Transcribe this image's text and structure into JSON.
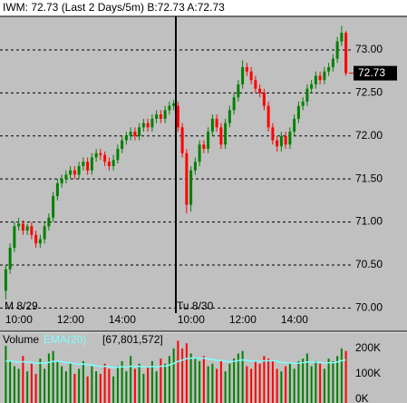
{
  "header": {
    "title": "IWM: 72.73 (Last 2 Days/5m)  B:72.73 A:72.73"
  },
  "chart_data": [
    {
      "type": "candlestick",
      "last_price": 72.73,
      "up_color": "#008000",
      "down_color": "#ff0000",
      "ylim": [
        69.94,
        73.37
      ],
      "yticks": [
        {
          "value": 73,
          "label": "73.00"
        },
        {
          "value": 72.5,
          "label": "72.50"
        },
        {
          "value": 72,
          "label": "72.00"
        },
        {
          "value": 71.5,
          "label": "71.50"
        },
        {
          "value": 71,
          "label": "71.00"
        },
        {
          "value": 70.5,
          "label": "70.50"
        },
        {
          "value": 70,
          "label": "70.00"
        }
      ],
      "grid": true,
      "categories": [
        null,
        null,
        "10:00",
        null,
        null,
        null,
        null,
        null,
        null,
        null,
        null,
        null,
        null,
        null,
        "12:00",
        null,
        null,
        null,
        null,
        null,
        null,
        null,
        null,
        null,
        null,
        null,
        "14:00",
        null,
        null,
        null,
        null,
        null,
        null,
        null,
        null,
        null,
        null,
        null,
        null,
        null,
        null,
        null,
        "10:00",
        null,
        null,
        null,
        null,
        null,
        null,
        null,
        null,
        null,
        null,
        null,
        "12:00",
        null,
        null,
        null,
        null,
        null,
        null,
        null,
        null,
        null,
        null,
        null,
        "14:00",
        null,
        null,
        null,
        null,
        null,
        null,
        null,
        null,
        null,
        null,
        null,
        null,
        null
      ],
      "dates": [
        "M  8/29",
        null,
        null,
        null,
        null,
        null,
        null,
        null,
        null,
        null,
        null,
        null,
        null,
        null,
        null,
        null,
        null,
        null,
        null,
        null,
        null,
        null,
        null,
        null,
        null,
        null,
        null,
        null,
        null,
        null,
        null,
        null,
        null,
        null,
        null,
        null,
        null,
        null,
        null,
        null,
        "Tu 8/30",
        null,
        null,
        null,
        null,
        null,
        null,
        null,
        null,
        null,
        null,
        null,
        null,
        null,
        null,
        null,
        null,
        null,
        null,
        null,
        null,
        null,
        null,
        null,
        null,
        null,
        null,
        null,
        null,
        null,
        null,
        null,
        null,
        null,
        null,
        null,
        null,
        null,
        null,
        null
      ],
      "open": [
        70.2,
        70.45,
        70.7,
        70.95,
        70.98,
        70.9,
        70.95,
        70.85,
        70.75,
        70.8,
        70.95,
        71.05,
        71.3,
        71.45,
        71.5,
        71.55,
        71.6,
        71.55,
        71.65,
        71.7,
        71.6,
        71.75,
        71.8,
        71.78,
        71.7,
        71.65,
        71.72,
        71.85,
        71.95,
        72.0,
        72.05,
        72.0,
        72.1,
        72.15,
        72.1,
        72.2,
        72.25,
        72.2,
        72.3,
        72.35,
        72.35,
        72.1,
        71.8,
        71.2,
        71.6,
        71.7,
        71.9,
        71.85,
        72.05,
        72.2,
        72.1,
        71.9,
        72.15,
        72.3,
        72.45,
        72.6,
        72.8,
        72.75,
        72.65,
        72.55,
        72.5,
        72.35,
        72.1,
        71.95,
        71.88,
        72.0,
        71.9,
        72.05,
        72.2,
        72.35,
        72.4,
        72.55,
        72.6,
        72.7,
        72.65,
        72.75,
        72.8,
        72.9,
        73.1,
        73.2
      ],
      "high": [
        70.5,
        70.75,
        71.0,
        71.05,
        71.02,
        70.98,
        71.0,
        70.9,
        70.85,
        71.0,
        71.1,
        71.35,
        71.5,
        71.55,
        71.6,
        71.65,
        71.65,
        71.7,
        71.75,
        71.75,
        71.8,
        71.85,
        71.85,
        71.82,
        71.75,
        71.78,
        71.9,
        72.0,
        72.05,
        72.1,
        72.1,
        72.15,
        72.2,
        72.2,
        72.25,
        72.3,
        72.3,
        72.35,
        72.4,
        72.42,
        72.4,
        72.15,
        71.85,
        71.65,
        71.75,
        71.95,
        71.95,
        72.1,
        72.25,
        72.25,
        72.15,
        72.2,
        72.35,
        72.5,
        72.65,
        72.88,
        72.85,
        72.8,
        72.7,
        72.6,
        72.55,
        72.4,
        72.15,
        72.0,
        72.05,
        72.05,
        72.1,
        72.25,
        72.4,
        72.45,
        72.6,
        72.65,
        72.75,
        72.75,
        72.8,
        72.85,
        72.95,
        73.15,
        73.28,
        73.22
      ],
      "low": [
        70.1,
        70.4,
        70.65,
        70.9,
        70.85,
        70.85,
        70.8,
        70.7,
        70.7,
        70.75,
        70.9,
        71.0,
        71.25,
        71.4,
        71.45,
        71.5,
        71.5,
        71.5,
        71.6,
        71.55,
        71.55,
        71.7,
        71.72,
        71.65,
        71.6,
        71.6,
        71.68,
        71.8,
        71.9,
        71.95,
        71.95,
        71.95,
        72.05,
        72.05,
        72.05,
        72.15,
        72.15,
        72.15,
        72.25,
        72.3,
        72.05,
        71.75,
        71.1,
        71.12,
        71.55,
        71.65,
        71.8,
        71.8,
        72.0,
        72.05,
        71.85,
        71.85,
        72.1,
        72.25,
        72.4,
        72.55,
        72.7,
        72.6,
        72.5,
        72.45,
        72.3,
        72.05,
        71.9,
        71.82,
        71.82,
        71.85,
        71.85,
        72.0,
        72.15,
        72.3,
        72.35,
        72.5,
        72.55,
        72.6,
        72.6,
        72.7,
        72.75,
        72.85,
        73.05,
        72.7
      ],
      "close": [
        70.45,
        70.7,
        70.95,
        70.98,
        70.9,
        70.95,
        70.85,
        70.75,
        70.8,
        70.95,
        71.05,
        71.3,
        71.45,
        71.5,
        71.55,
        71.6,
        71.55,
        71.65,
        71.7,
        71.6,
        71.75,
        71.8,
        71.78,
        71.7,
        71.65,
        71.72,
        71.85,
        71.95,
        72.0,
        72.05,
        72.0,
        72.1,
        72.15,
        72.1,
        72.2,
        72.25,
        72.2,
        72.3,
        72.35,
        72.38,
        72.1,
        71.8,
        71.2,
        71.6,
        71.7,
        71.9,
        71.85,
        72.05,
        72.2,
        72.1,
        71.9,
        72.15,
        72.3,
        72.45,
        72.6,
        72.8,
        72.75,
        72.65,
        72.55,
        72.5,
        72.35,
        72.1,
        71.95,
        71.88,
        72.0,
        71.9,
        72.05,
        72.2,
        72.35,
        72.4,
        72.55,
        72.6,
        72.7,
        72.65,
        72.75,
        72.8,
        72.9,
        73.1,
        73.2,
        72.73
      ]
    },
    {
      "type": "volume",
      "title": "Volume",
      "total": "[67,801,572]",
      "ylim": [
        0,
        260000
      ],
      "yticks": [
        {
          "value": 200000,
          "label": "200K"
        },
        {
          "value": 100000,
          "label": "100K"
        },
        {
          "value": 0,
          "label": "0K"
        }
      ],
      "values": [
        210000,
        150000,
        130000,
        120000,
        170000,
        110000,
        140000,
        100000,
        160000,
        120000,
        180000,
        190000,
        150000,
        130000,
        110000,
        140000,
        100000,
        120000,
        150000,
        90000,
        130000,
        110000,
        100000,
        140000,
        120000,
        90000,
        130000,
        150000,
        110000,
        170000,
        120000,
        140000,
        100000,
        130000,
        150000,
        110000,
        160000,
        140000,
        170000,
        200000,
        230000,
        200000,
        220000,
        180000,
        160000,
        150000,
        170000,
        130000,
        140000,
        120000,
        150000,
        110000,
        140000,
        160000,
        180000,
        190000,
        130000,
        120000,
        150000,
        140000,
        170000,
        160000,
        150000,
        120000,
        110000,
        130000,
        140000,
        120000,
        150000,
        160000,
        180000,
        130000,
        150000,
        140000,
        120000,
        160000,
        150000,
        170000,
        200000,
        190000
      ],
      "series": [
        {
          "name": "EMA(20)",
          "color": "#7fffff",
          "values": [
            150000,
            150000,
            148000,
            146000,
            148000,
            146000,
            145000,
            141000,
            143000,
            141000,
            145000,
            149000,
            149000,
            148000,
            144000,
            144000,
            140000,
            138000,
            139000,
            135000,
            135000,
            132000,
            129000,
            130000,
            129000,
            125000,
            126000,
            128000,
            126000,
            130000,
            129000,
            130000,
            127000,
            127000,
            129000,
            127000,
            130000,
            131000,
            135000,
            141000,
            149000,
            154000,
            160000,
            162000,
            162000,
            161000,
            162000,
            159000,
            157000,
            153000,
            153000,
            149000,
            148000,
            149000,
            152000,
            155000,
            153000,
            150000,
            150000,
            149000,
            151000,
            152000,
            152000,
            149000,
            145000,
            144000,
            143000,
            141000,
            142000,
            144000,
            147000,
            146000,
            146000,
            145000,
            142000,
            144000,
            144000,
            147000,
            152000,
            155000
          ]
        }
      ]
    }
  ]
}
